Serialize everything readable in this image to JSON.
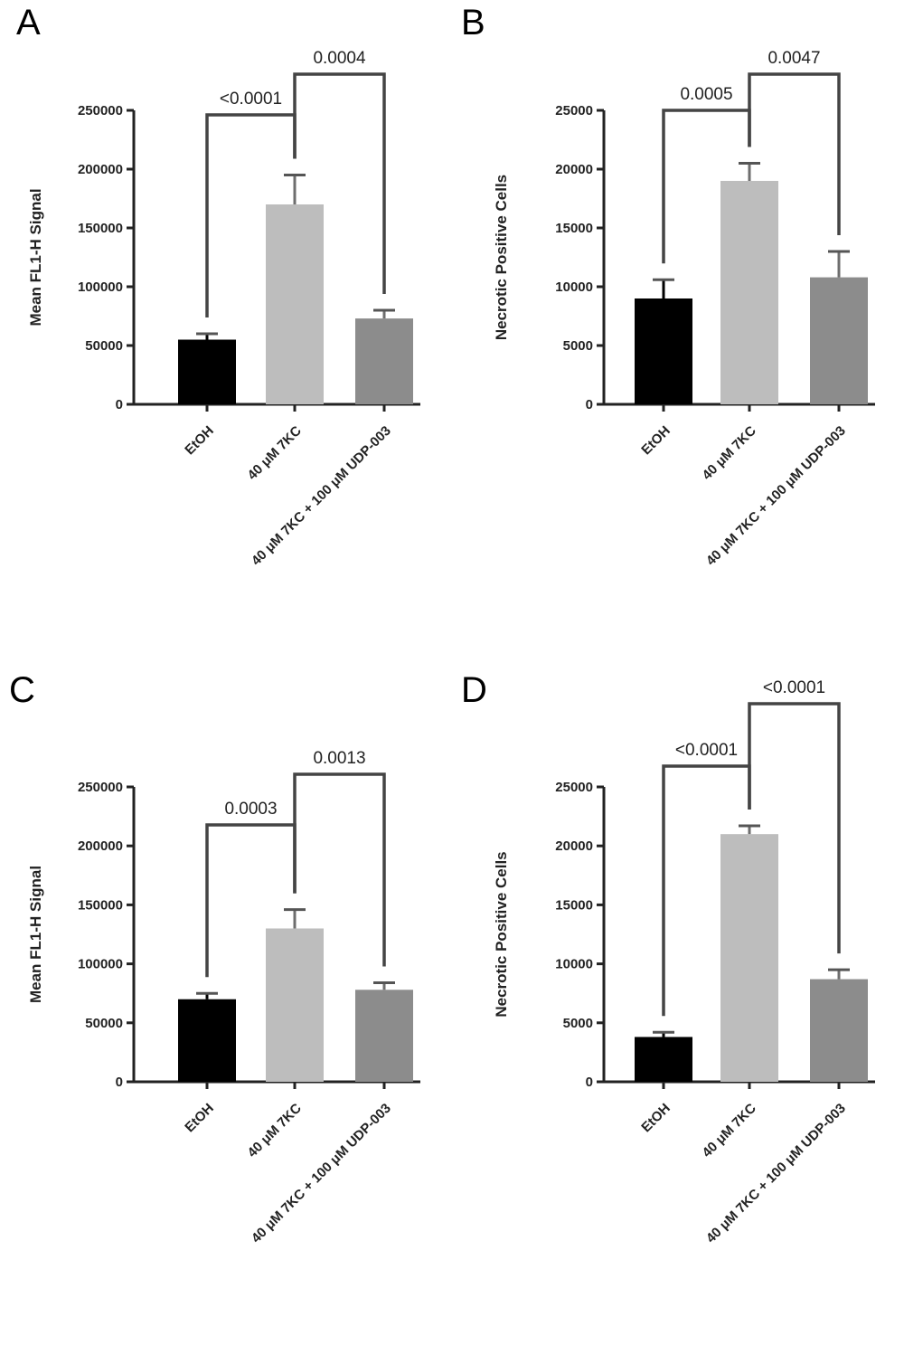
{
  "chart_data": [
    {
      "panel": "A",
      "type": "bar",
      "ylabel": "Mean FL1-H Signal",
      "ylim": [
        0,
        250000
      ],
      "yticks": [
        0,
        50000,
        100000,
        150000,
        200000,
        250000
      ],
      "ytick_labels": [
        "0",
        "50000",
        "100000",
        "150000",
        "200000",
        "250000"
      ],
      "categories": [
        "EtOH",
        "40 μM 7KC",
        "40 μM 7KC + 100 μM UDP-003"
      ],
      "values": [
        55000,
        170000,
        73000
      ],
      "errors": [
        5000,
        25000,
        7000
      ],
      "colors": [
        "#000000",
        "#bdbdbd",
        "#8c8c8c"
      ],
      "comparisons": [
        {
          "from": 0,
          "to": 1,
          "label": "<0.0001",
          "level": 0
        },
        {
          "from": 1,
          "to": 2,
          "label": "0.0004",
          "level": 1
        }
      ]
    },
    {
      "panel": "B",
      "type": "bar",
      "ylabel": "Necrotic Positive Cells",
      "ylim": [
        0,
        25000
      ],
      "yticks": [
        0,
        5000,
        10000,
        15000,
        20000,
        25000
      ],
      "ytick_labels": [
        "0",
        "5000",
        "10000",
        "15000",
        "20000",
        "25000"
      ],
      "categories": [
        "EtOH",
        "40 μM 7KC",
        "40 μM 7KC + 100 μM UDP-003"
      ],
      "values": [
        9000,
        19000,
        10800
      ],
      "errors": [
        1600,
        1500,
        2200
      ],
      "colors": [
        "#000000",
        "#bdbdbd",
        "#8c8c8c"
      ],
      "comparisons": [
        {
          "from": 0,
          "to": 1,
          "label": "0.0005",
          "level": 0
        },
        {
          "from": 1,
          "to": 2,
          "label": "0.0047",
          "level": 1
        }
      ]
    },
    {
      "panel": "C",
      "type": "bar",
      "ylabel": "Mean FL1-H Signal",
      "ylim": [
        0,
        250000
      ],
      "yticks": [
        0,
        50000,
        100000,
        150000,
        200000,
        250000
      ],
      "ytick_labels": [
        "0",
        "50000",
        "100000",
        "150000",
        "200000",
        "250000"
      ],
      "categories": [
        "EtOH",
        "40 μM 7KC",
        "40 μM 7KC + 100 μM UDP-003"
      ],
      "values": [
        70000,
        130000,
        78000
      ],
      "errors": [
        5000,
        16000,
        6000
      ],
      "colors": [
        "#000000",
        "#bdbdbd",
        "#8c8c8c"
      ],
      "comparisons": [
        {
          "from": 0,
          "to": 1,
          "label": "0.0003",
          "level": 0
        },
        {
          "from": 1,
          "to": 2,
          "label": "0.0013",
          "level": 1
        }
      ]
    },
    {
      "panel": "D",
      "type": "bar",
      "ylabel": "Necrotic Positive Cells",
      "ylim": [
        0,
        25000
      ],
      "yticks": [
        0,
        5000,
        10000,
        15000,
        20000,
        25000
      ],
      "ytick_labels": [
        "0",
        "5000",
        "10000",
        "15000",
        "20000",
        "25000"
      ],
      "categories": [
        "EtOH",
        "40 μM 7KC",
        "40 μM 7KC + 100 μM UDP-003"
      ],
      "values": [
        3800,
        21000,
        8700
      ],
      "errors": [
        400,
        700,
        800
      ],
      "colors": [
        "#000000",
        "#bdbdbd",
        "#8c8c8c"
      ],
      "comparisons": [
        {
          "from": 0,
          "to": 1,
          "label": "<0.0001",
          "level": 0
        },
        {
          "from": 1,
          "to": 2,
          "label": "<0.0001",
          "level": 1
        }
      ]
    }
  ]
}
